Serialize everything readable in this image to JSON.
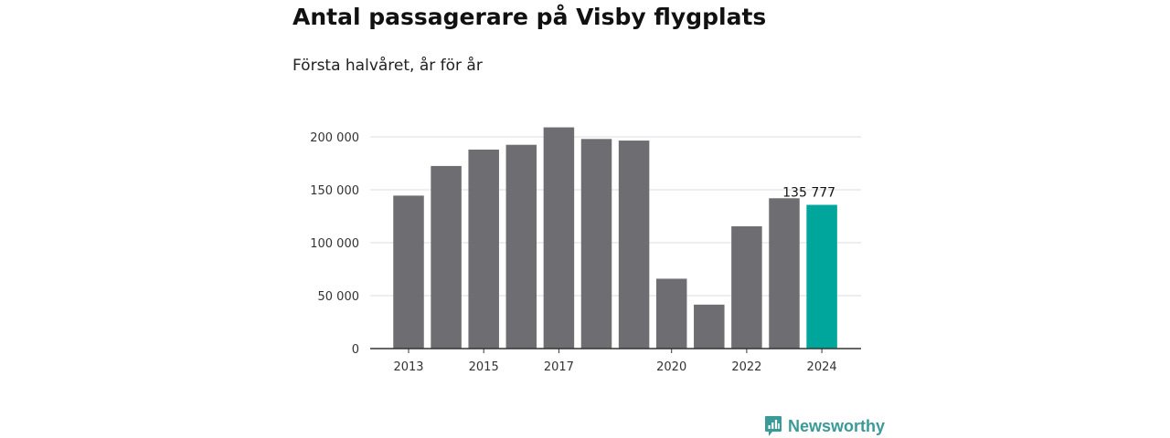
{
  "title": "Antal passagerare på Visby flygplats",
  "subtitle": "Första halvåret, år för år",
  "brand": {
    "name": "Newsworthy",
    "icon": "newsworthy-logo-icon",
    "color": "#3a9a98"
  },
  "chart_data": {
    "type": "bar",
    "x": [
      2013,
      2014,
      2015,
      2016,
      2017,
      2018,
      2019,
      2020,
      2021,
      2022,
      2023,
      2024
    ],
    "values": [
      144500,
      172500,
      188000,
      192500,
      209000,
      198000,
      196500,
      66000,
      41500,
      115500,
      142000,
      135777
    ],
    "x_ticks": [
      "2013",
      "2015",
      "2017",
      "2020",
      "2022",
      "2024"
    ],
    "y_ticks": [
      0,
      50000,
      100000,
      150000,
      200000
    ],
    "y_tick_labels": [
      "0",
      "50 000",
      "100 000",
      "150 000",
      "200 000"
    ],
    "ylim": [
      0,
      215000
    ],
    "highlight": {
      "x": 2024,
      "label": "135 777"
    },
    "colors": {
      "bar": "#6e6d72",
      "highlight": "#00a69c",
      "grid": "#dddddd",
      "axis": "#333333"
    },
    "grid": true,
    "xlabel": "",
    "ylabel": ""
  }
}
